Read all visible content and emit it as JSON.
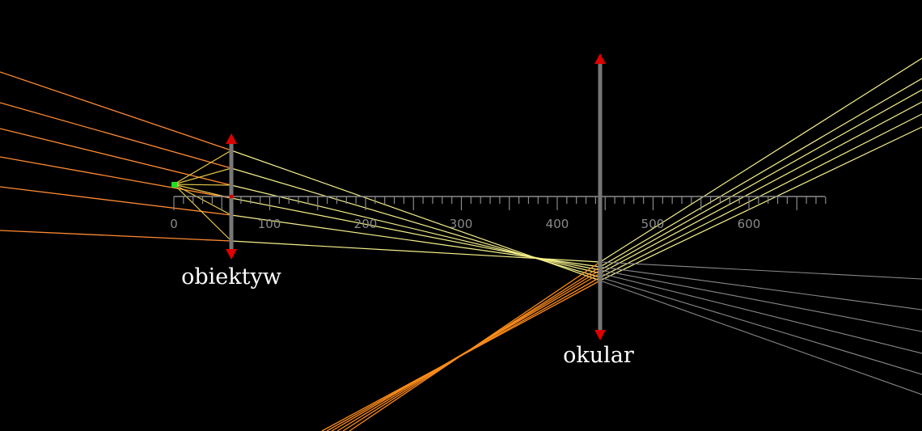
{
  "scene": {
    "background": "#000000",
    "ruler": {
      "color": "#8a8a8a",
      "start": 0,
      "end": 680,
      "minor_step": 10,
      "major_step": 50,
      "labels": [
        "0",
        "100",
        "200",
        "300",
        "400",
        "500",
        "600"
      ]
    },
    "object_point": {
      "color": "#22dd22"
    },
    "focal_marker": {
      "color": "#dd0000"
    },
    "lenses": [
      {
        "id": "objective",
        "label": "obiektyw",
        "color": "#777777",
        "arrow_color": "#dd0000"
      },
      {
        "id": "eyepiece",
        "label": "okular",
        "color": "#777777",
        "arrow_color": "#dd0000"
      }
    ],
    "ray_colors": {
      "incident": "#ff8a33",
      "refracted": "#f5f08a",
      "inner": "#e8c84a",
      "virtual": "#ff8c1a",
      "outgoing_dim": "#8a8a8a"
    }
  }
}
